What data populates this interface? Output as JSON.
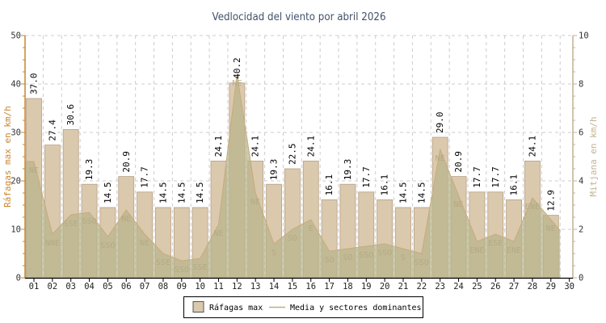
{
  "title": "Vedlocidad del viento por abril 2026",
  "colors": {
    "bar_fill": "#dbc9ae",
    "bar_border": "#b5a084",
    "area_fill": "#b8b48c",
    "area_line": "#c8aa7c",
    "grid": "#cccccc",
    "left_axis": "#c9862f",
    "right_axis": "#c2b291",
    "x_axis": "#000000",
    "title_color": "#41506a",
    "tick_label": "#333333",
    "bar_value_label": "#000000",
    "sector_label": "#b3a783",
    "legend_border": "#000000",
    "legend_bg": "#ffffff"
  },
  "left_axis": {
    "label": "Ráfagas max en km/h",
    "min": 0,
    "max": 50,
    "ticks": [
      0,
      10,
      20,
      30,
      40,
      50
    ]
  },
  "right_axis": {
    "label": "Mitjana en km/h",
    "min": 0,
    "max": 10,
    "ticks": [
      0,
      2,
      4,
      6,
      8,
      10
    ]
  },
  "legend": [
    {
      "swatch": "box",
      "label": "Ráfagas max"
    },
    {
      "swatch": "line",
      "label": "Media y sectores dominantes"
    }
  ],
  "chart_data": {
    "type": "bar",
    "title": "Vedlocidad del viento por abril 2026",
    "xlabel": "",
    "ylabel_left": "Ráfagas max en km/h",
    "ylabel_right": "Mitjana en km/h",
    "ylim_left": [
      0,
      50
    ],
    "ylim_right": [
      0,
      10
    ],
    "grid": true,
    "legend_position": "bottom-center",
    "categories": [
      "01",
      "02",
      "03",
      "04",
      "05",
      "06",
      "07",
      "08",
      "09",
      "10",
      "11",
      "12",
      "13",
      "14",
      "15",
      "16",
      "17",
      "18",
      "19",
      "20",
      "21",
      "22",
      "23",
      "24",
      "25",
      "26",
      "27",
      "28",
      "29",
      "30"
    ],
    "series": [
      {
        "name": "Ráfagas max",
        "type": "bar",
        "axis": "left",
        "values": [
          37.0,
          27.4,
          30.6,
          19.3,
          14.5,
          20.9,
          17.7,
          14.5,
          14.5,
          14.5,
          24.1,
          40.2,
          24.1,
          19.3,
          22.5,
          24.1,
          16.1,
          19.3,
          17.7,
          16.1,
          14.5,
          14.5,
          29.0,
          20.9,
          17.7,
          17.7,
          16.1,
          24.1,
          12.9,
          null
        ]
      },
      {
        "name": "Media",
        "type": "area",
        "axis": "right",
        "values": [
          4.8,
          1.8,
          2.6,
          2.7,
          1.7,
          2.8,
          1.8,
          1.0,
          0.7,
          0.8,
          2.2,
          8.4,
          3.5,
          1.4,
          2.0,
          2.4,
          1.1,
          1.2,
          1.3,
          1.4,
          1.2,
          1.0,
          5.3,
          3.4,
          1.5,
          1.8,
          1.5,
          3.3,
          2.4,
          null
        ]
      },
      {
        "name": "Sectores dominantes",
        "type": "point-labels",
        "values": [
          "NE",
          "NNE",
          "SSE",
          "SSO",
          "SSO",
          "NE",
          "NE",
          "SSE",
          "SSO",
          "SSE",
          "NE",
          "NE",
          "NE",
          "S",
          "SO",
          "E",
          "SO",
          "SO",
          "SSO",
          "SSO",
          "S",
          "SSO",
          "NE",
          "NE",
          "ENE",
          "ESE",
          "ENE",
          "ENE",
          "NE",
          null
        ]
      }
    ]
  }
}
